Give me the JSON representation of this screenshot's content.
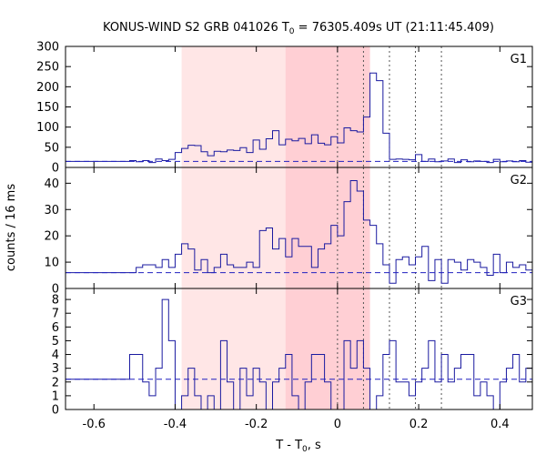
{
  "title_prefix": "KONUS-WIND S2 GRB 041026 T",
  "title_sub": "0",
  "title_suffix": " = 76305.409s UT (21:11:45.409)",
  "xlabel_prefix": "T - T",
  "xlabel_sub": "0",
  "xlabel_suffix": ", s",
  "ylabel": "counts / 16 ms",
  "colors": {
    "histogram": "#1a1aa0",
    "background": "#2020c0",
    "light_band": "#ffe6e6",
    "dark_band": "#ffcfd4",
    "marker": "#555555"
  },
  "chart_data": {
    "type": "histogram",
    "xlim": [
      -0.67,
      0.48
    ],
    "xticks": [
      -0.6,
      -0.4,
      -0.2,
      0,
      0.2,
      0.4
    ],
    "xtick_labels": [
      "-0.6",
      "-0.4",
      "-0.2",
      "0",
      "0.2",
      "0.4"
    ],
    "bin_width_s": 0.016,
    "shaded_regions": [
      {
        "from": -0.384,
        "to": 0.08,
        "shade": "light"
      },
      {
        "from": -0.128,
        "to": 0.08,
        "shade": "dark"
      }
    ],
    "vertical_markers": [
      0,
      0.064,
      0.128,
      0.192,
      0.256
    ],
    "panels": [
      {
        "name": "G1",
        "ylim": [
          0,
          300
        ],
        "yticks": [
          0,
          50,
          100,
          150,
          200,
          250,
          300
        ],
        "background_level": 15,
        "bins_start": -0.512,
        "pre_level": 15,
        "post_level": 15,
        "values": [
          17,
          14,
          17,
          12,
          21,
          17,
          20,
          37,
          47,
          55,
          54,
          39,
          29,
          40,
          39,
          43,
          42,
          49,
          37,
          68,
          45,
          71,
          91,
          56,
          70,
          66,
          72,
          59,
          81,
          60,
          56,
          76,
          61,
          98,
          91,
          88,
          125,
          234,
          215,
          85,
          20,
          21,
          20,
          19,
          32,
          15,
          21,
          14,
          16,
          21,
          12,
          19,
          14,
          16,
          15,
          12,
          20,
          14,
          16,
          14,
          17,
          13
        ]
      },
      {
        "name": "G2",
        "ylim": [
          0,
          46
        ],
        "yticks": [
          0,
          10,
          20,
          30,
          40
        ],
        "background_level": 6,
        "bins_start": -0.512,
        "pre_level": 6,
        "post_level": 6,
        "values": [
          6,
          8,
          9,
          9,
          8,
          11,
          8,
          13,
          17,
          15,
          7,
          11,
          6,
          8,
          13,
          9,
          8,
          8,
          10,
          8,
          22,
          23,
          15,
          19,
          12,
          19,
          16,
          16,
          8,
          15,
          17,
          24,
          20,
          33,
          41,
          37,
          26,
          24,
          17,
          9,
          2,
          11,
          12,
          9,
          12,
          16,
          3,
          11,
          2,
          11,
          10,
          7,
          11,
          10,
          8,
          5,
          13,
          6,
          10,
          8,
          9,
          7
        ]
      },
      {
        "name": "G3",
        "ylim": [
          0,
          8.8
        ],
        "yticks": [
          0,
          1,
          2,
          3,
          4,
          5,
          6,
          7,
          8
        ],
        "background_level": 2.2,
        "bins_start": -0.512,
        "pre_level": 2.2,
        "post_level": 2.2,
        "values": [
          4,
          4,
          2,
          1,
          3,
          8,
          5,
          0,
          1,
          3,
          1,
          0,
          1,
          0,
          5,
          2,
          0,
          3,
          1,
          3,
          2,
          0,
          2,
          3,
          4,
          1,
          0,
          2,
          4,
          4,
          2,
          0,
          0,
          5,
          3,
          5,
          3,
          0,
          1,
          4,
          5,
          2,
          2,
          1,
          2,
          3,
          5,
          2,
          4,
          2,
          3,
          4,
          4,
          1,
          2,
          1,
          0,
          2,
          3,
          4,
          2,
          3
        ]
      }
    ]
  }
}
